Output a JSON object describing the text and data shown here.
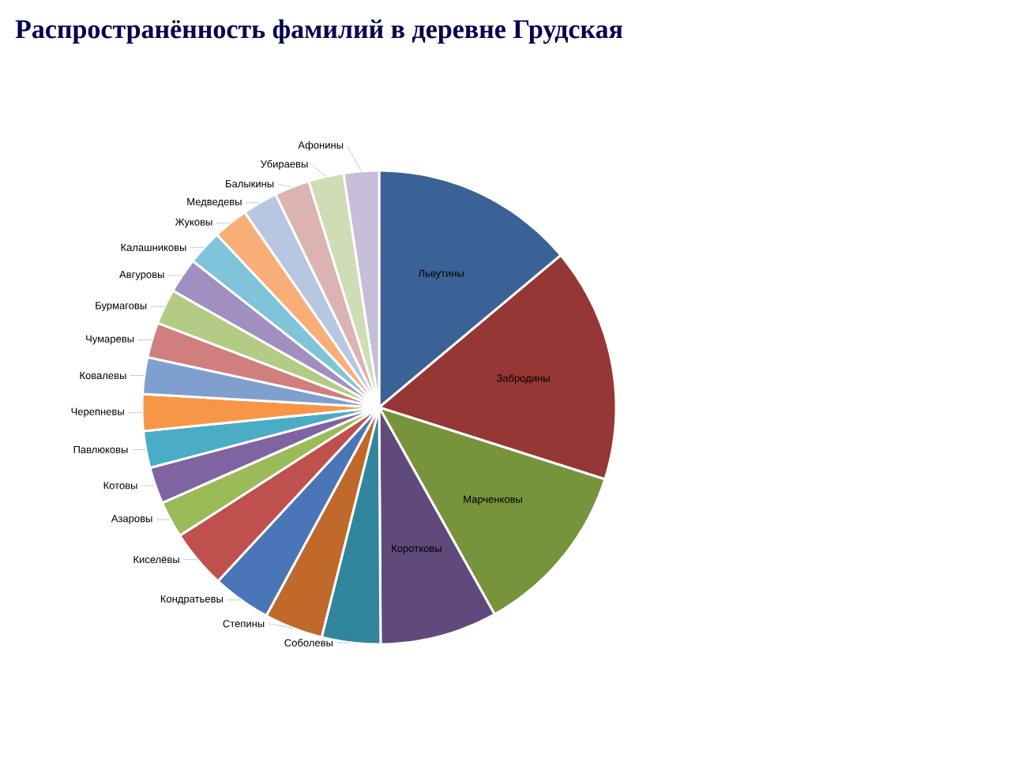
{
  "chart_data": {
    "type": "pie",
    "title": "Распространённость фамилий в деревне Грудская",
    "categories": [
      "Львутины",
      "Забродины",
      "Марченковы",
      "Коротковы",
      "Соболевы",
      "Степины",
      "Кондратьевы",
      "Киселёвы",
      "Азаровы",
      "Котовы",
      "Павлюковы",
      "Черепневы",
      "Ковалевы",
      "Чумаревы",
      "Бурмаговы",
      "Авгуровы",
      "Калашниковы",
      "Жуковы",
      "Медведевы",
      "Балыкины",
      "Убираевы",
      "Афонины"
    ],
    "values": [
      13.9,
      16,
      12,
      8,
      4,
      4,
      4,
      4,
      2.5,
      2.5,
      2.5,
      2.5,
      2.5,
      2.4,
      2.4,
      2.4,
      2.4,
      2.4,
      2.4,
      2.4,
      2.4,
      2.4
    ],
    "colors": [
      "#3a6296",
      "#953735",
      "#77933c",
      "#604a7b",
      "#31859c",
      "#c0692a",
      "#4a76b8",
      "#c0504d",
      "#9bbb59",
      "#8064a2",
      "#4bacc6",
      "#f79646",
      "#7f9fcf",
      "#cf7f7d",
      "#b3cb84",
      "#a08fbf",
      "#7fc4d8",
      "#f9ae77",
      "#b7c7e2",
      "#dab3b2",
      "#cfdcb5",
      "#c6bdd8"
    ]
  }
}
